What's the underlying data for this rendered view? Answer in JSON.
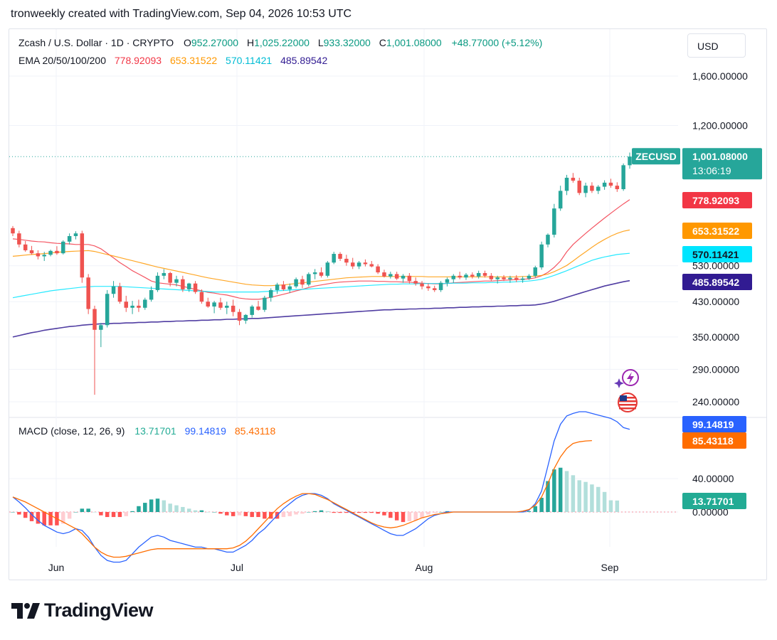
{
  "header": {
    "text": "tronweekly created with TradingView.com, Sep 04, 2026 10:53 UTC"
  },
  "legend": {
    "symbol": "Zcash / U.S. Dollar · 1D · CRYPTO",
    "open_label": "O",
    "open": "952.27000",
    "high_label": "H",
    "high": "1,025.22000",
    "low_label": "L",
    "low": "933.32000",
    "close_label": "C",
    "close": "1,001.08000",
    "change": "+48.77000 (+5.12%)",
    "ema_label": "EMA 20/50/100/200",
    "ema20": "778.92093",
    "ema50": "653.31522",
    "ema100": "570.11421",
    "ema200": "485.89542",
    "macd_label": "MACD (close, 12, 26, 9)",
    "macd_hist": "13.71701",
    "macd_line": "99.14819",
    "macd_signal": "85.43118"
  },
  "currency_button": "USD",
  "price_badge": {
    "symbol": "ZECUSD",
    "price": "1,001.08000",
    "countdown": "13:06:19"
  },
  "price_axis_labels": [
    "1,600.00000",
    "1,200.00000",
    "530.00000",
    "430.00000",
    "350.00000",
    "290.00000",
    "240.00000"
  ],
  "ema_badges": [
    "778.92093",
    "653.31522",
    "570.11421",
    "485.89542"
  ],
  "macd_axis_labels": [
    "40.00000",
    "0.00000"
  ],
  "macd_badges": [
    "99.14819",
    "85.43118",
    "13.71701"
  ],
  "time_labels": [
    "Jun",
    "Jul",
    "Aug",
    "Sep"
  ],
  "footer": {
    "brand": "TradingView"
  },
  "colors": {
    "up": "#26a69a",
    "down": "#ef5350",
    "ema20": "#f23645",
    "ema50": "#ff9800",
    "ema100": "#00e5ff",
    "ema200": "#311b92",
    "macd_line": "#2962ff",
    "signal_line": "#ff6d00",
    "hist_up_strong": "#26a69a",
    "hist_up_weak": "#b2dfdb",
    "hist_down_strong": "#ff5252",
    "hist_down_weak": "#ffcdd2"
  },
  "icons": [
    "lightning-icon",
    "us-flag-icon"
  ],
  "chart_data": {
    "type": "candlestick",
    "title": "Zcash / U.S. Dollar · 1D · CRYPTO",
    "price_scale": "log",
    "xlabel": "",
    "ylabel": "",
    "x_ticks": [
      "Jun",
      "Jul",
      "Aug",
      "Sep"
    ],
    "y_ticks": [
      240,
      290,
      350,
      430,
      530,
      1200,
      1600
    ],
    "candles": [
      [
        660,
        668,
        630,
        640
      ],
      [
        640,
        650,
        590,
        600
      ],
      [
        600,
        612,
        575,
        580
      ],
      [
        580,
        595,
        565,
        570
      ],
      [
        570,
        580,
        550,
        560
      ],
      [
        560,
        575,
        545,
        565
      ],
      [
        565,
        582,
        560,
        578
      ],
      [
        578,
        594,
        565,
        570
      ],
      [
        570,
        615,
        566,
        610
      ],
      [
        610,
        640,
        600,
        630
      ],
      [
        630,
        648,
        618,
        640
      ],
      [
        640,
        650,
        480,
        495
      ],
      [
        495,
        505,
        400,
        412
      ],
      [
        412,
        420,
        250,
        365
      ],
      [
        365,
        380,
        330,
        375
      ],
      [
        375,
        460,
        370,
        450
      ],
      [
        450,
        485,
        440,
        470
      ],
      [
        470,
        480,
        425,
        430
      ],
      [
        430,
        445,
        405,
        415
      ],
      [
        415,
        432,
        400,
        420
      ],
      [
        420,
        435,
        405,
        415
      ],
      [
        415,
        440,
        410,
        435
      ],
      [
        435,
        470,
        430,
        460
      ],
      [
        460,
        510,
        455,
        500
      ],
      [
        500,
        520,
        490,
        508
      ],
      [
        508,
        512,
        470,
        480
      ],
      [
        480,
        500,
        470,
        490
      ],
      [
        490,
        500,
        455,
        462
      ],
      [
        462,
        480,
        455,
        478
      ],
      [
        478,
        485,
        450,
        455
      ],
      [
        455,
        462,
        425,
        430
      ],
      [
        430,
        440,
        415,
        418
      ],
      [
        418,
        432,
        402,
        428
      ],
      [
        428,
        440,
        410,
        415
      ],
      [
        415,
        430,
        400,
        420
      ],
      [
        420,
        435,
        395,
        405
      ],
      [
        405,
        412,
        375,
        385
      ],
      [
        385,
        400,
        378,
        398
      ],
      [
        398,
        422,
        392,
        418
      ],
      [
        418,
        432,
        408,
        410
      ],
      [
        410,
        445,
        405,
        440
      ],
      [
        440,
        465,
        430,
        460
      ],
      [
        460,
        480,
        450,
        475
      ],
      [
        475,
        485,
        458,
        462
      ],
      [
        462,
        478,
        452,
        470
      ],
      [
        470,
        495,
        465,
        490
      ],
      [
        490,
        500,
        465,
        475
      ],
      [
        475,
        510,
        470,
        505
      ],
      [
        505,
        520,
        490,
        510
      ],
      [
        510,
        525,
        495,
        500
      ],
      [
        500,
        545,
        495,
        540
      ],
      [
        540,
        575,
        535,
        568
      ],
      [
        568,
        574,
        545,
        552
      ],
      [
        552,
        565,
        530,
        540
      ],
      [
        540,
        555,
        520,
        528
      ],
      [
        528,
        545,
        520,
        540
      ],
      [
        540,
        550,
        528,
        535
      ],
      [
        535,
        545,
        525,
        528
      ],
      [
        528,
        535,
        505,
        510
      ],
      [
        510,
        518,
        495,
        498
      ],
      [
        498,
        512,
        492,
        505
      ],
      [
        505,
        512,
        488,
        492
      ],
      [
        492,
        505,
        480,
        500
      ],
      [
        500,
        508,
        478,
        485
      ],
      [
        485,
        495,
        472,
        478
      ],
      [
        478,
        485,
        462,
        470
      ],
      [
        470,
        478,
        458,
        465
      ],
      [
        465,
        472,
        455,
        460
      ],
      [
        460,
        485,
        455,
        480
      ],
      [
        480,
        495,
        470,
        490
      ],
      [
        490,
        505,
        480,
        500
      ],
      [
        500,
        512,
        490,
        495
      ],
      [
        495,
        508,
        488,
        503
      ],
      [
        503,
        510,
        492,
        498
      ],
      [
        498,
        515,
        492,
        508
      ],
      [
        508,
        515,
        495,
        500
      ],
      [
        500,
        508,
        485,
        490
      ],
      [
        490,
        500,
        478,
        495
      ],
      [
        495,
        502,
        485,
        490
      ],
      [
        490,
        500,
        480,
        494
      ],
      [
        494,
        502,
        482,
        488
      ],
      [
        488,
        498,
        480,
        492
      ],
      [
        492,
        505,
        488,
        500
      ],
      [
        500,
        530,
        495,
        525
      ],
      [
        525,
        610,
        518,
        600
      ],
      [
        600,
        640,
        590,
        635
      ],
      [
        635,
        760,
        625,
        740
      ],
      [
        740,
        845,
        730,
        820
      ],
      [
        820,
        900,
        800,
        885
      ],
      [
        885,
        910,
        860,
        870
      ],
      [
        870,
        885,
        800,
        810
      ],
      [
        810,
        860,
        790,
        845
      ],
      [
        845,
        862,
        810,
        820
      ],
      [
        820,
        848,
        805,
        840
      ],
      [
        840,
        872,
        825,
        860
      ],
      [
        860,
        880,
        835,
        845
      ],
      [
        845,
        862,
        815,
        828
      ],
      [
        828,
        962,
        820,
        952
      ],
      [
        952,
        1025,
        933,
        1001
      ]
    ],
    "ema": {
      "EMA 20": [
        620,
        618,
        615,
        612,
        610,
        609,
        606,
        604,
        603,
        602,
        600,
        600,
        600,
        595,
        585,
        570,
        555,
        540,
        528,
        515,
        505,
        495,
        485,
        480,
        478,
        476,
        474,
        470,
        466,
        462,
        458,
        454,
        452,
        449,
        447,
        443,
        439,
        437,
        436,
        436,
        438,
        441,
        445,
        449,
        453,
        458,
        462,
        467,
        471,
        474,
        477,
        480,
        482,
        483,
        484,
        485,
        485,
        485,
        484,
        484,
        483,
        483,
        482,
        482,
        480,
        479,
        478,
        477,
        477,
        478,
        480,
        481,
        482,
        483,
        484,
        485,
        485,
        486,
        487,
        488,
        489,
        490,
        491,
        494,
        500,
        510,
        525,
        545,
        575,
        600,
        620,
        640,
        660,
        680,
        700,
        720,
        740,
        760,
        779
      ],
      "EMA 50": [
        560,
        562,
        564,
        566,
        567,
        569,
        571,
        573,
        575,
        576,
        577,
        578,
        579,
        576,
        571,
        566,
        561,
        556,
        551,
        546,
        541,
        536,
        531,
        526,
        522,
        518,
        514,
        510,
        506,
        502,
        498,
        494,
        491,
        488,
        485,
        482,
        479,
        476,
        474,
        473,
        472,
        472,
        473,
        474,
        476,
        478,
        480,
        482,
        484,
        486,
        488,
        490,
        492,
        494,
        495,
        496,
        497,
        498,
        498,
        498,
        498,
        498,
        498,
        498,
        498,
        498,
        497,
        497,
        497,
        497,
        497,
        497,
        497,
        497,
        497,
        497,
        497,
        497,
        497,
        497,
        497,
        498,
        498,
        499,
        501,
        505,
        512,
        521,
        531,
        545,
        560,
        575,
        590,
        605,
        618,
        630,
        640,
        648,
        653
      ],
      "EMA 100": [
        440,
        443,
        446,
        449,
        452,
        455,
        458,
        460,
        462,
        464,
        466,
        468,
        469,
        470,
        470,
        470,
        470,
        470,
        469,
        468,
        467,
        466,
        465,
        464,
        463,
        462,
        461,
        460,
        459,
        458,
        457,
        456,
        455,
        455,
        455,
        455,
        455,
        455,
        455,
        455,
        456,
        457,
        458,
        459,
        460,
        461,
        462,
        463,
        464,
        465,
        466,
        467,
        468,
        469,
        470,
        471,
        472,
        473,
        474,
        475,
        476,
        476,
        477,
        477,
        477,
        478,
        478,
        478,
        478,
        478,
        479,
        479,
        479,
        480,
        480,
        480,
        481,
        481,
        482,
        482,
        483,
        484,
        485,
        487,
        490,
        495,
        501,
        508,
        515,
        523,
        531,
        539,
        547,
        553,
        558,
        562,
        566,
        568,
        570
      ],
      "EMA 200": [
        350,
        353,
        356,
        359,
        361,
        364,
        366,
        368,
        370,
        372,
        373,
        375,
        376,
        377,
        378,
        378,
        379,
        379,
        380,
        380,
        381,
        381,
        382,
        382,
        383,
        383,
        384,
        384,
        385,
        385,
        386,
        386,
        387,
        387,
        388,
        388,
        389,
        389,
        390,
        390,
        391,
        392,
        393,
        394,
        395,
        396,
        397,
        398,
        399,
        400,
        401,
        402,
        403,
        404,
        405,
        406,
        407,
        408,
        409,
        410,
        410,
        411,
        411,
        412,
        412,
        413,
        413,
        414,
        414,
        415,
        415,
        416,
        416,
        417,
        417,
        418,
        418,
        419,
        419,
        420,
        420,
        421,
        421,
        422,
        424,
        427,
        431,
        436,
        441,
        446,
        451,
        456,
        461,
        466,
        471,
        475,
        479,
        483,
        486
      ]
    },
    "macd": {
      "macd_line": [
        18,
        12,
        5,
        -3,
        -10,
        -16,
        -20,
        -24,
        -26,
        -24,
        -20,
        -22,
        -30,
        -42,
        -52,
        -58,
        -60,
        -60,
        -58,
        -50,
        -42,
        -36,
        -30,
        -28,
        -30,
        -34,
        -36,
        -38,
        -40,
        -42,
        -42,
        -44,
        -44,
        -46,
        -48,
        -48,
        -44,
        -40,
        -34,
        -26,
        -20,
        -12,
        -4,
        4,
        10,
        16,
        20,
        22,
        22,
        20,
        16,
        10,
        6,
        2,
        -2,
        -6,
        -10,
        -14,
        -18,
        -22,
        -26,
        -28,
        -28,
        -24,
        -20,
        -14,
        -8,
        -4,
        -2,
        0,
        0,
        0,
        0,
        0,
        0,
        0,
        0,
        0,
        0,
        0,
        0,
        0,
        2,
        10,
        25,
        55,
        85,
        105,
        115,
        118,
        120,
        120,
        118,
        116,
        114,
        112,
        108,
        101,
        99
      ],
      "signal_line": [
        18,
        15,
        12,
        8,
        4,
        0,
        -4,
        -8,
        -12,
        -16,
        -20,
        -26,
        -34,
        -42,
        -48,
        -52,
        -54,
        -54,
        -53,
        -51,
        -49,
        -47,
        -45,
        -44,
        -44,
        -44,
        -44,
        -44,
        -44,
        -44,
        -44,
        -44,
        -44,
        -44,
        -44,
        -43,
        -40,
        -35,
        -28,
        -20,
        -12,
        -4,
        4,
        10,
        15,
        19,
        22,
        22,
        21,
        18,
        15,
        11,
        7,
        3,
        -1,
        -5,
        -9,
        -13,
        -16,
        -18,
        -19,
        -18,
        -16,
        -13,
        -10,
        -7,
        -5,
        -3,
        -2,
        -1,
        0,
        0,
        0,
        0,
        0,
        0,
        0,
        0,
        0,
        0,
        0,
        1,
        3,
        8,
        18,
        34,
        52,
        66,
        76,
        82,
        84,
        85,
        85.43
      ],
      "histogram": [
        0,
        -3,
        -7,
        -11,
        -14,
        -16,
        -16,
        -16,
        -14,
        -8,
        0,
        4,
        4,
        0,
        -4,
        -6,
        -6,
        -6,
        -5,
        1,
        7,
        11,
        15,
        16,
        14,
        10,
        8,
        6,
        4,
        2,
        2,
        0,
        0,
        -2,
        -4,
        -5,
        -4,
        -5,
        -6,
        -6,
        -8,
        -8,
        -8,
        -6,
        -5,
        -3,
        -2,
        0,
        1,
        2,
        1,
        -1,
        -1,
        -1,
        -1,
        -1,
        -1,
        -1,
        -2,
        -4,
        -7,
        -10,
        -12,
        -11,
        -10,
        -7,
        -3,
        -1,
        0,
        1,
        0,
        0,
        0,
        0,
        0,
        0,
        0,
        0,
        0,
        0,
        0,
        0,
        1,
        7,
        17,
        37,
        51,
        53,
        49,
        44,
        38,
        36,
        33,
        30,
        24,
        14,
        13.72
      ]
    }
  }
}
